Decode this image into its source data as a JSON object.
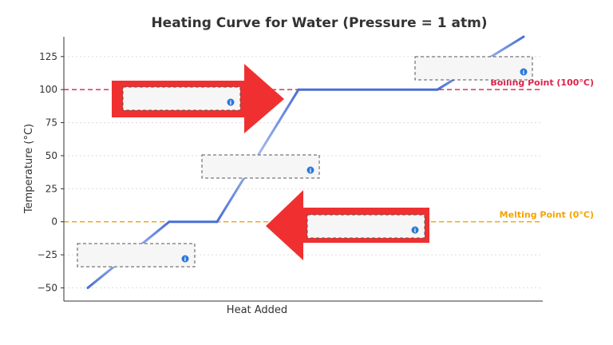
{
  "chart_data": {
    "type": "line",
    "title": "Heating Curve for Water (Pressure = 1 atm)",
    "xlabel": "Heat Added",
    "ylabel": "Temperature (°C)",
    "xlim": [
      0,
      100
    ],
    "ylim": [
      -60,
      140
    ],
    "yticks": [
      -50,
      -25,
      0,
      25,
      50,
      75,
      100,
      125
    ],
    "grid": "horizontal",
    "series": [
      {
        "color": "#4a6fd4",
        "points": [
          [
            5,
            -50
          ],
          [
            22,
            0
          ],
          [
            32,
            0
          ],
          [
            49,
            100
          ],
          [
            78,
            100
          ],
          [
            96,
            140
          ]
        ]
      }
    ],
    "reference_lines": [
      {
        "value": 100,
        "label": "Boiling Point (100°C)",
        "color": "#e0204a"
      },
      {
        "value": 0,
        "label": "Melting Point (0°C)",
        "color": "#f5a300"
      }
    ],
    "annotations": [
      {
        "label": "",
        "icon": "info-icon",
        "segment": "ice-heating"
      },
      {
        "label": "",
        "icon": "info-icon",
        "segment": "water-heating"
      },
      {
        "label": "",
        "icon": "info-icon",
        "segment": "boiling"
      },
      {
        "label": "",
        "icon": "info-icon",
        "segment": "melting"
      },
      {
        "label": "",
        "icon": "info-icon",
        "segment": "steam-heating"
      }
    ],
    "arrows": [
      {
        "direction": "right",
        "color": "#f03030"
      },
      {
        "direction": "left",
        "color": "#f03030"
      }
    ]
  }
}
